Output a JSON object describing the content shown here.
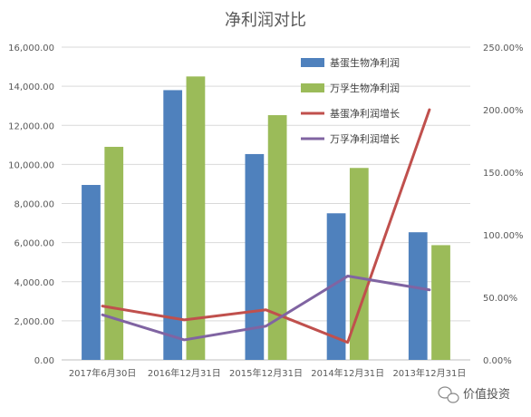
{
  "chart_data": {
    "type": "bar",
    "title": "净利润对比",
    "categories": [
      "2017年6月30日",
      "2016年12月31日",
      "2015年12月31日",
      "2014年12月31日",
      "2013年12月31日"
    ],
    "series": [
      {
        "name": "基蛋生物净利润",
        "kind": "bar",
        "axis": "left",
        "color": "#4f81bd",
        "values": [
          8950,
          13800,
          10530,
          7500,
          6530
        ]
      },
      {
        "name": "万孚生物净利润",
        "kind": "bar",
        "axis": "left",
        "color": "#9bbb59",
        "values": [
          10900,
          14500,
          12520,
          9820,
          5870
        ]
      },
      {
        "name": "基蛋净利润增长",
        "kind": "line",
        "axis": "right",
        "color": "#c0504d",
        "values": [
          0.43,
          0.32,
          0.4,
          0.14,
          2.0
        ]
      },
      {
        "name": "万孚净利润增长",
        "kind": "line",
        "axis": "right",
        "color": "#8064a2",
        "values": [
          0.36,
          0.16,
          0.27,
          0.67,
          0.56
        ]
      }
    ],
    "ylim": [
      0,
      16000
    ],
    "y_ticks": [
      "0.00",
      "2,000.00",
      "4,000.00",
      "6,000.00",
      "8,000.00",
      "10,000.00",
      "12,000.00",
      "14,000.00",
      "16,000.00"
    ],
    "y2lim": [
      0,
      2.5
    ],
    "y2_ticks": [
      "0.00%",
      "50.00%",
      "100.00%",
      "150.00%",
      "200.00%",
      "250.00%"
    ],
    "grid": true,
    "legend_position": "top-right"
  },
  "watermark": {
    "text": "价值投资",
    "icon": "wechat-icon"
  }
}
